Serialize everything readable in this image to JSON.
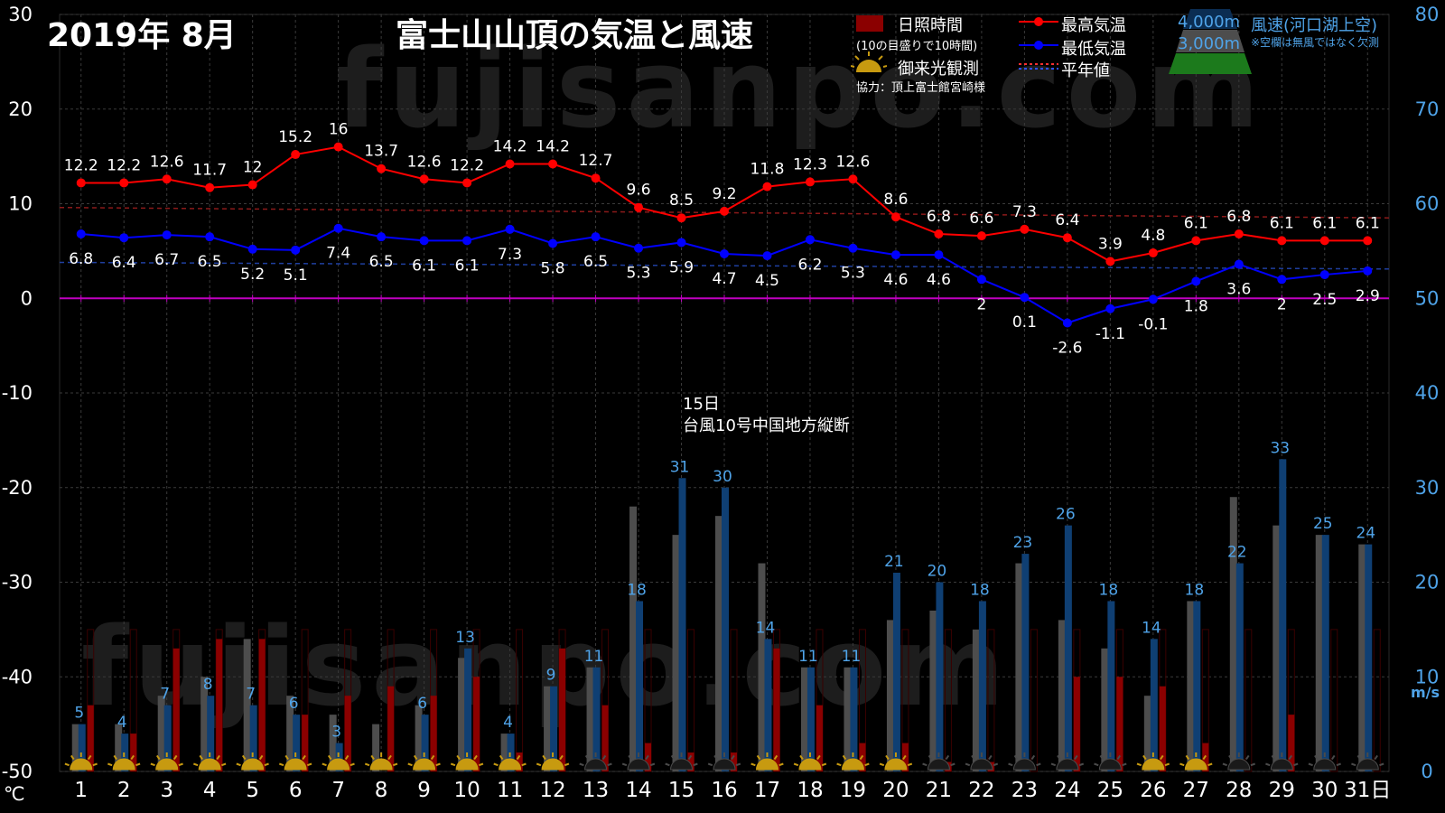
{
  "header": {
    "date_title": "2019年  8月",
    "main_title": "富士山山頂の気温と風速"
  },
  "watermark": "fujisanpo.com",
  "legend": {
    "sunshine_label": "日照時間",
    "sunshine_note": "(10の目盛りで10時間)",
    "sunrise_label": "御来光観測",
    "cooperation": "協力：頂上富士館宮崎様",
    "max_label": "最高気温",
    "min_label": "最低気温",
    "normal_label": "平年値",
    "wind_4000": "4,000m",
    "wind_3000": "3,000m",
    "wind_label": "風速(河口湖上空)",
    "wind_note": "※空欄は無風ではなく欠測"
  },
  "annotation": {
    "line1": "15日",
    "line2": "台風10号中国地方縦断"
  },
  "colors": {
    "max_temp": "#ff0000",
    "min_temp": "#0000ff",
    "normal_max": "#8b1a1a",
    "normal_min": "#1f3f9f",
    "zero_line": "#c000c0",
    "wind_3000": "#4d4d4d",
    "wind_4000": "#0f3f73",
    "sunshine": "#8b0000",
    "wind_label": "#4fa3e8",
    "sun_icon": "#c79a10"
  },
  "chart_data": {
    "type": "line",
    "x": [
      1,
      2,
      3,
      4,
      5,
      6,
      7,
      8,
      9,
      10,
      11,
      12,
      13,
      14,
      15,
      16,
      17,
      18,
      19,
      20,
      21,
      22,
      23,
      24,
      25,
      26,
      27,
      28,
      29,
      30,
      31
    ],
    "x_tick_labels": [
      "1",
      "2",
      "3",
      "4",
      "5",
      "6",
      "7",
      "8",
      "9",
      "10",
      "11",
      "12",
      "13",
      "14",
      "15",
      "16",
      "17",
      "18",
      "19",
      "20",
      "21",
      "22",
      "23",
      "24",
      "25",
      "26",
      "27",
      "28",
      "29",
      "30",
      "31日"
    ],
    "y_left_label": "℃",
    "y_left_range": [
      -50,
      30
    ],
    "y_left_ticks": [
      "30",
      "20",
      "10",
      "0",
      "-10",
      "-20",
      "-30",
      "-40",
      "-50"
    ],
    "y_right_label": "m/s",
    "y_right_range": [
      0,
      80
    ],
    "y_right_ticks": [
      "80",
      "70",
      "60",
      "50",
      "40",
      "30",
      "20",
      "10",
      "0"
    ],
    "series": [
      {
        "name": "最高気温",
        "values": [
          12.2,
          12.2,
          12.6,
          11.7,
          12,
          15.2,
          16,
          13.7,
          12.6,
          12.2,
          14.2,
          14.2,
          12.7,
          9.6,
          8.5,
          9.2,
          11.8,
          12.3,
          12.6,
          8.6,
          6.8,
          6.6,
          7.3,
          6.4,
          3.9,
          4.8,
          6.1,
          6.8,
          6.1,
          6.1,
          6.1
        ]
      },
      {
        "name": "最低気温",
        "values": [
          6.8,
          6.4,
          6.7,
          6.5,
          5.2,
          5.1,
          7.4,
          6.5,
          6.1,
          6.1,
          7.3,
          5.8,
          6.5,
          5.3,
          5.9,
          4.7,
          4.5,
          6.2,
          5.3,
          4.6,
          4.6,
          2,
          0.1,
          -2.6,
          -1.1,
          -0.1,
          1.8,
          3.6,
          2,
          2.5,
          2.9
        ]
      }
    ],
    "normal_max": [
      9.6,
      8.5
    ],
    "normal_min": [
      3.8,
      3.1
    ],
    "wind_4000_values": [
      5,
      4,
      7,
      8,
      7,
      6,
      3,
      null,
      6,
      13,
      4,
      9,
      11,
      18,
      31,
      30,
      14,
      11,
      11,
      21,
      20,
      18,
      23,
      26,
      18,
      14,
      18,
      22,
      33,
      25,
      24
    ],
    "wind_3000_values": [
      5,
      5,
      8,
      10,
      14,
      8,
      6,
      5,
      7,
      12,
      4,
      9,
      11,
      28,
      25,
      27,
      22,
      11,
      11,
      16,
      17,
      15,
      22,
      16,
      13,
      8,
      18,
      29,
      26,
      25,
      24
    ],
    "sunshine_hours": [
      7,
      4,
      13,
      14,
      14,
      6,
      8,
      9,
      8,
      10,
      2,
      13,
      7,
      3,
      2,
      2,
      13,
      7,
      3,
      3,
      1,
      1,
      0,
      10,
      10,
      9,
      3,
      0,
      6,
      0,
      0
    ],
    "sunrise_observed": [
      true,
      true,
      true,
      true,
      true,
      true,
      true,
      true,
      true,
      true,
      true,
      true,
      false,
      false,
      false,
      false,
      true,
      true,
      true,
      true,
      false,
      false,
      false,
      false,
      false,
      true,
      true,
      false,
      false,
      false,
      false
    ]
  }
}
